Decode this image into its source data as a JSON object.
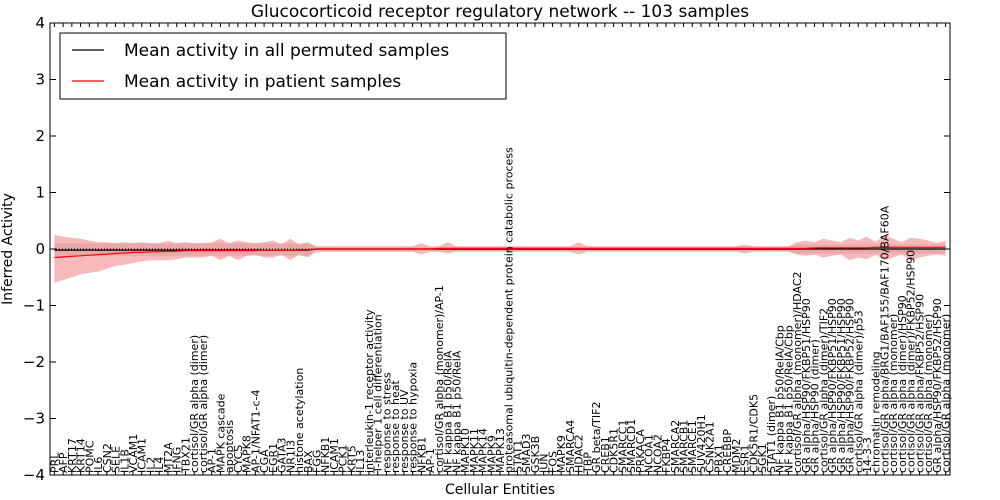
{
  "chart_data": {
    "type": "line",
    "title": "Glucocorticoid receptor regulatory network -- 103 samples",
    "xlabel": "Cellular Entities",
    "ylabel": "Inferred Activity",
    "ylim": [
      -4,
      4
    ],
    "y_ticks": [
      4,
      3,
      2,
      1,
      0,
      -1,
      -2,
      -3,
      -4
    ],
    "y_tick_labels": [
      "4",
      "3",
      "2",
      "1",
      "0",
      "−1",
      "−2",
      "−3",
      "−4"
    ],
    "grid": false,
    "legend_position": "top-left",
    "categories": [
      "PRL",
      "AFP",
      "KRT17",
      "KRT14",
      "POMC",
      "IL6",
      "CSN2",
      "SELE",
      "IL1B",
      "VCAM1",
      "ICAM1",
      "IL2",
      "IL4",
      "MT2A",
      "IFNG",
      "TBX21",
      "cortisol/GR alpha (dimer)",
      "cortisol/GR alpha (dimer)",
      "AP-1",
      "MAPK cascade",
      "apoptosis",
      "CYCS",
      "MAPK8",
      "AP-1/NFAT1-c-4",
      "CGA",
      "EGR1",
      "GATA3",
      "NR1I3",
      "histone acetylation",
      "BAX",
      "FGG",
      "NFKB1",
      "ICAM1",
      "PCK1",
      "KRT5",
      "IL13",
      "interleukin-1 receptor activity",
      "T-helper 1 cell differentiation",
      "response to stress",
      "response to heat",
      "response to UV",
      "response to hypoxia",
      "NFKB1",
      "AP-1",
      "cortisol/GR alpha (monomer)/AP-1",
      "NF kappa B1 p50/RelA",
      "NF kappa B1 p50/RelA",
      "MAPK10",
      "MAPK11",
      "MAPK14",
      "MAPK9",
      "MAPK13",
      "proteasomal ubiquitin-dependent protein catabolic process",
      "STAT1",
      "SMAD3",
      "GSK3B",
      "JUN",
      "FOS",
      "MAPK9",
      "SMARCA4",
      "HDAC2",
      "TBP",
      "GR beta/TIF2",
      "CREB1",
      "CDK5R1",
      "SMARCC1",
      "SMARCD1",
      "PRKACA",
      "NCOA1",
      "NCOA2",
      "FKBP4",
      "SMARCA2",
      "SMARCB1",
      "SMARCE1",
      "SUV420H1",
      "CSNK2A1",
      "PBX1",
      "CREBBP",
      "MDM2",
      "ESR1",
      "CDK5R1/CDK5",
      "SGK1",
      "STAT1 (dimer)",
      "NF kappa B1 p50/RelA/Cbp",
      "NF kappa B1 p50/RelA/Cbp",
      "cortisol/GR alpha (monomer)/HDAC2",
      "GR alpha/HSP90/FKBP51/HSP90",
      "GR alpha/HSP90 (dimer)",
      "cortisol/GR alpha (dimer)/TIF2",
      "GR alpha/HSP90/FKBP51/HSP90",
      "GR alpha/HSP90/FKBP51/HSP90",
      "GR alpha/HSP90/FKBP52/HSP90",
      "cortisol/GR alpha (dimer)/p53",
      "14-3-3",
      "chromatin remodeling",
      "cortisol/GR alpha/BRG1/BAF155/BAF170/BAF60A",
      "cortisol/GR alpha (monomer)",
      "cortisol/GR alpha (dimer)/HSP90",
      "cortisol/GR alpha (dimer)/FKBP52/HSP90",
      "cortisol/GR alpha/FKBP52/HSP90",
      "cortisol/GR alpha (monomer)",
      "GR alpha/HSP90/FKBP52/HSP90",
      "cortisol/GR alpha (monomer)"
    ],
    "series": [
      {
        "name": "Mean activity in all permuted samples",
        "color": "#000000",
        "band_color": "#b0b0b0",
        "values": [
          -0.02,
          -0.02,
          -0.02,
          -0.02,
          -0.02,
          -0.02,
          -0.02,
          -0.02,
          -0.02,
          -0.02,
          -0.02,
          -0.02,
          -0.02,
          -0.02,
          -0.02,
          -0.02,
          -0.02,
          -0.02,
          -0.02,
          -0.02,
          -0.02,
          -0.02,
          -0.02,
          -0.02,
          -0.02,
          -0.02,
          -0.02,
          -0.02,
          -0.02,
          -0.02,
          0.0,
          0.0,
          0.0,
          0.0,
          0.0,
          0.0,
          0.0,
          0.0,
          0.0,
          0.0,
          0.0,
          0.0,
          0.0,
          0.0,
          0.0,
          0.0,
          0.0,
          0.0,
          0.0,
          0.0,
          0.0,
          0.0,
          0.0,
          0.0,
          0.0,
          0.0,
          0.0,
          0.0,
          0.0,
          0.0,
          0.0,
          0.0,
          0.0,
          0.0,
          0.0,
          0.0,
          0.0,
          0.0,
          0.0,
          0.0,
          0.0,
          0.0,
          0.0,
          0.0,
          0.0,
          0.0,
          0.0,
          0.0,
          0.0,
          0.0,
          0.0,
          0.0,
          0.0,
          0.0,
          0.0,
          0.0,
          0.0,
          0.0,
          0.0,
          0.0,
          0.0,
          0.0,
          0.0,
          0.0,
          0.0,
          0.0,
          0.0,
          0.0,
          0.0,
          0.0,
          0.0,
          0.0,
          0.0
        ],
        "band_lower": [
          -0.12,
          -0.12,
          -0.12,
          -0.12,
          -0.12,
          -0.12,
          -0.12,
          -0.12,
          -0.12,
          -0.12,
          -0.12,
          -0.12,
          -0.12,
          -0.12,
          -0.12,
          -0.12,
          -0.12,
          -0.12,
          -0.12,
          -0.12,
          -0.12,
          -0.12,
          -0.12,
          -0.12,
          -0.12,
          -0.12,
          -0.12,
          -0.12,
          -0.12,
          -0.12,
          -0.04,
          -0.04,
          -0.04,
          -0.04,
          -0.04,
          -0.04,
          -0.04,
          -0.04,
          -0.04,
          -0.04,
          -0.04,
          -0.04,
          -0.04,
          -0.04,
          -0.04,
          -0.04,
          -0.04,
          -0.04,
          -0.04,
          -0.04,
          -0.04,
          -0.04,
          -0.04,
          -0.04,
          -0.04,
          -0.04,
          -0.04,
          -0.04,
          -0.04,
          -0.04,
          -0.04,
          -0.04,
          -0.04,
          -0.04,
          -0.04,
          -0.04,
          -0.04,
          -0.04,
          -0.04,
          -0.04,
          -0.04,
          -0.04,
          -0.04,
          -0.04,
          -0.04,
          -0.04,
          -0.04,
          -0.04,
          -0.04,
          -0.04,
          -0.04,
          -0.04,
          -0.04,
          -0.04,
          -0.04,
          -0.08,
          -0.08,
          -0.08,
          -0.08,
          -0.08,
          -0.08,
          -0.08,
          -0.08,
          -0.08,
          -0.08,
          -0.08,
          -0.08,
          -0.08,
          -0.08,
          -0.08,
          -0.08,
          -0.08,
          -0.08
        ],
        "band_upper": [
          0.1,
          0.1,
          0.1,
          0.1,
          0.1,
          0.1,
          0.1,
          0.1,
          0.1,
          0.1,
          0.1,
          0.1,
          0.1,
          0.1,
          0.1,
          0.1,
          0.1,
          0.1,
          0.1,
          0.1,
          0.1,
          0.1,
          0.1,
          0.1,
          0.1,
          0.1,
          0.1,
          0.1,
          0.1,
          0.1,
          0.04,
          0.04,
          0.04,
          0.04,
          0.04,
          0.04,
          0.04,
          0.04,
          0.04,
          0.04,
          0.04,
          0.04,
          0.04,
          0.04,
          0.04,
          0.04,
          0.04,
          0.04,
          0.04,
          0.04,
          0.04,
          0.04,
          0.04,
          0.04,
          0.04,
          0.04,
          0.04,
          0.04,
          0.04,
          0.04,
          0.04,
          0.04,
          0.04,
          0.04,
          0.04,
          0.04,
          0.04,
          0.04,
          0.04,
          0.04,
          0.04,
          0.04,
          0.04,
          0.04,
          0.04,
          0.04,
          0.04,
          0.04,
          0.04,
          0.04,
          0.04,
          0.04,
          0.04,
          0.04,
          0.04,
          0.08,
          0.08,
          0.08,
          0.08,
          0.08,
          0.08,
          0.08,
          0.08,
          0.08,
          0.08,
          0.08,
          0.08,
          0.08,
          0.08,
          0.08,
          0.08,
          0.08,
          0.08
        ]
      },
      {
        "name": "Mean activity in patient samples",
        "color": "#ff0000",
        "band_color": "#f08080",
        "values": [
          -0.15,
          -0.14,
          -0.13,
          -0.12,
          -0.11,
          -0.1,
          -0.09,
          -0.08,
          -0.07,
          -0.06,
          -0.06,
          -0.05,
          -0.05,
          -0.04,
          -0.04,
          -0.03,
          -0.03,
          -0.03,
          -0.03,
          -0.03,
          -0.03,
          -0.03,
          -0.03,
          -0.03,
          -0.02,
          -0.02,
          -0.02,
          -0.02,
          -0.01,
          -0.01,
          0.0,
          0.0,
          0.0,
          0.0,
          0.0,
          0.0,
          0.0,
          0.0,
          0.0,
          0.0,
          0.0,
          0.0,
          0.0,
          0.0,
          0.01,
          0.01,
          0.01,
          0.01,
          0.01,
          0.01,
          0.01,
          0.01,
          0.01,
          0.01,
          0.01,
          0.01,
          0.01,
          0.01,
          0.01,
          0.01,
          0.01,
          0.01,
          0.01,
          0.01,
          0.01,
          0.01,
          0.01,
          0.01,
          0.01,
          0.01,
          0.01,
          0.01,
          0.01,
          0.01,
          0.01,
          0.01,
          0.01,
          0.01,
          0.01,
          0.01,
          0.01,
          0.01,
          0.01,
          0.01,
          0.01,
          0.01,
          0.01,
          0.02,
          0.02,
          0.02,
          0.02,
          0.02,
          0.02,
          0.02,
          0.03,
          0.03,
          0.03,
          0.03,
          0.03,
          0.03,
          0.03,
          0.03,
          0.03
        ],
        "band_lower": [
          -0.6,
          -0.55,
          -0.5,
          -0.45,
          -0.42,
          -0.4,
          -0.35,
          -0.3,
          -0.28,
          -0.25,
          -0.22,
          -0.2,
          -0.2,
          -0.2,
          -0.18,
          -0.15,
          -0.15,
          -0.15,
          -0.12,
          -0.2,
          -0.12,
          -0.2,
          -0.12,
          -0.1,
          -0.15,
          -0.15,
          -0.1,
          -0.2,
          -0.1,
          -0.15,
          -0.05,
          -0.05,
          -0.05,
          -0.05,
          -0.05,
          -0.05,
          -0.05,
          -0.05,
          -0.05,
          -0.05,
          -0.05,
          -0.05,
          -0.1,
          -0.05,
          -0.05,
          -0.08,
          -0.05,
          -0.05,
          -0.05,
          -0.05,
          -0.05,
          -0.05,
          -0.05,
          -0.05,
          -0.05,
          -0.05,
          -0.05,
          -0.05,
          -0.05,
          -0.05,
          -0.1,
          -0.05,
          -0.05,
          -0.05,
          -0.05,
          -0.05,
          -0.05,
          -0.05,
          -0.05,
          -0.05,
          -0.05,
          -0.05,
          -0.05,
          -0.05,
          -0.05,
          -0.05,
          -0.05,
          -0.05,
          -0.05,
          -0.08,
          -0.05,
          -0.05,
          -0.05,
          -0.05,
          -0.05,
          -0.1,
          -0.12,
          -0.1,
          -0.15,
          -0.12,
          -0.1,
          -0.2,
          -0.15,
          -0.18,
          -0.1,
          -0.2,
          -0.15,
          -0.1,
          -0.2,
          -0.15,
          -0.12,
          -0.1,
          -0.12
        ],
        "band_upper": [
          0.25,
          0.22,
          0.2,
          0.18,
          0.15,
          0.12,
          0.12,
          0.1,
          0.12,
          0.1,
          0.12,
          0.1,
          0.1,
          0.15,
          0.1,
          0.12,
          0.1,
          0.1,
          0.12,
          0.18,
          0.1,
          0.15,
          0.12,
          0.1,
          0.12,
          0.15,
          0.08,
          0.18,
          0.08,
          0.12,
          0.05,
          0.05,
          0.05,
          0.05,
          0.05,
          0.05,
          0.05,
          0.05,
          0.05,
          0.05,
          0.05,
          0.05,
          0.1,
          0.05,
          0.05,
          0.12,
          0.05,
          0.05,
          0.05,
          0.05,
          0.05,
          0.05,
          0.05,
          0.05,
          0.05,
          0.05,
          0.05,
          0.05,
          0.05,
          0.05,
          0.12,
          0.05,
          0.05,
          0.05,
          0.05,
          0.05,
          0.05,
          0.05,
          0.05,
          0.05,
          0.05,
          0.05,
          0.05,
          0.05,
          0.05,
          0.05,
          0.05,
          0.05,
          0.05,
          0.08,
          0.05,
          0.05,
          0.05,
          0.05,
          0.05,
          0.12,
          0.15,
          0.12,
          0.18,
          0.15,
          0.12,
          0.2,
          0.15,
          0.22,
          0.12,
          0.25,
          0.18,
          0.12,
          0.2,
          0.18,
          0.15,
          0.1,
          0.15
        ]
      }
    ]
  }
}
